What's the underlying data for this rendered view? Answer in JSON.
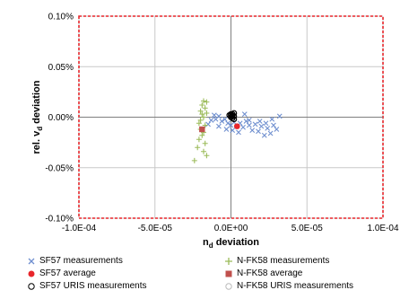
{
  "chart_data": {
    "type": "scatter",
    "xlim": [
      -0.0001,
      0.0001
    ],
    "ylim": [
      -0.1,
      0.1
    ],
    "x_ticks": [
      "-1.0E-04",
      "-5.0E-05",
      "0.0E+00",
      "5.0E-05",
      "1.0E-04"
    ],
    "x_tick_values": [
      -0.0001,
      -5e-05,
      0,
      5e-05,
      0.0001
    ],
    "y_ticks": [
      "0.10%",
      "0.05%",
      "0.00%",
      "-0.05%",
      "-0.10%"
    ],
    "y_tick_values": [
      0.1,
      0.05,
      0,
      -0.05,
      -0.1
    ],
    "xlabel_main": "n",
    "xlabel_sub": "d",
    "xlabel_rest": " deviation",
    "ylabel_main": "rel. v",
    "ylabel_sub": "d",
    "ylabel_rest": " deviation",
    "grid": true,
    "legend_position": "bottom",
    "series": [
      {
        "name": "SF57 measurements",
        "marker": "x",
        "color": "#6f8fcf",
        "points": [
          [
            -1.3e-05,
            -0.003
          ],
          [
            -1.1e-05,
            0.002
          ],
          [
            -1e-05,
            -0.002
          ],
          [
            -8e-06,
            0.001
          ],
          [
            -6e-06,
            -0.004
          ],
          [
            -4e-06,
            -0.002
          ],
          [
            -2e-06,
            -0.006
          ],
          [
            0.0,
            -0.008
          ],
          [
            2e-06,
            -0.005
          ],
          [
            4e-06,
            -0.009
          ],
          [
            6e-06,
            -0.006
          ],
          [
            8e-06,
            -0.01
          ],
          [
            1e-05,
            -0.004
          ],
          [
            1.2e-05,
            -0.008
          ],
          [
            1.4e-05,
            -0.013
          ],
          [
            1.6e-05,
            -0.007
          ],
          [
            1.8e-05,
            -0.014
          ],
          [
            2e-05,
            -0.009
          ],
          [
            2.2e-05,
            -0.018
          ],
          [
            2.4e-05,
            -0.011
          ],
          [
            2.6e-05,
            -0.016
          ],
          [
            2.8e-05,
            -0.008
          ],
          [
            3e-05,
            -0.012
          ],
          [
            3.2e-05,
            0.001
          ],
          [
            2.7e-05,
            -0.002
          ],
          [
            -3e-06,
            -0.012
          ],
          [
            1e-06,
            -0.013
          ],
          [
            5e-06,
            -0.015
          ],
          [
            -8e-06,
            -0.009
          ],
          [
            1.2e-05,
            -0.003
          ],
          [
            1.9e-05,
            -0.004
          ],
          [
            2.3e-05,
            -0.006
          ],
          [
            9e-06,
            0.003
          ],
          [
            -1.5e-05,
            -0.007
          ]
        ]
      },
      {
        "name": "N-FK58 measurements",
        "marker": "+",
        "color": "#9bbb59",
        "points": [
          [
            -2.4e-05,
            -0.043
          ],
          [
            -2.2e-05,
            -0.03
          ],
          [
            -2.1e-05,
            -0.022
          ],
          [
            -2e-05,
            -0.012
          ],
          [
            -2e-05,
            -0.003
          ],
          [
            -2e-05,
            0.006
          ],
          [
            -1.9e-05,
            0.012
          ],
          [
            -1.9e-05,
            -0.018
          ],
          [
            -1.8e-05,
            0.016
          ],
          [
            -1.8e-05,
            0.0
          ],
          [
            -1.7e-05,
            -0.008
          ],
          [
            -1.7e-05,
            0.009
          ],
          [
            -1.6e-05,
            0.015
          ],
          [
            -1.6e-05,
            -0.038
          ],
          [
            -1.7e-05,
            -0.026
          ],
          [
            -1.8e-05,
            -0.034
          ],
          [
            -1.9e-05,
            0.003
          ],
          [
            -1.6e-05,
            0.004
          ],
          [
            -2.1e-05,
            -0.006
          ],
          [
            -1.8e-05,
            -0.015
          ]
        ]
      },
      {
        "name": "SF57 average",
        "marker": "circle",
        "color": "#e8262b",
        "points": [
          [
            4e-06,
            -0.009
          ]
        ]
      },
      {
        "name": "N-FK58 average",
        "marker": "square",
        "color": "#c0504d",
        "points": [
          [
            -1.9e-05,
            -0.012
          ]
        ]
      },
      {
        "name": "SF57 URIS measurements",
        "marker": "open-circle",
        "color": "#000000",
        "points": [
          [
            0.0,
            0.002
          ],
          [
            1e-06,
            0.003
          ],
          [
            2e-06,
            0.001
          ],
          [
            0.0,
            0.0
          ],
          [
            1e-06,
            -0.001
          ],
          [
            2e-06,
            0.004
          ],
          [
            -1e-06,
            0.002
          ],
          [
            1e-06,
            0.001
          ],
          [
            0.0,
            0.003
          ],
          [
            2e-06,
            -0.002
          ]
        ]
      },
      {
        "name": "N-FK58 URIS measurements",
        "marker": "open-circle-light",
        "color": "#cccccc",
        "points": []
      }
    ]
  },
  "legend": [
    {
      "label": "SF57 measurements",
      "icon": "x-mark-icon",
      "color": "#6f8fcf"
    },
    {
      "label": "N-FK58 measurements",
      "icon": "plus-mark-icon",
      "color": "#9bbb59"
    },
    {
      "label": "SF57 average",
      "icon": "filled-circle-icon",
      "color": "#e8262b"
    },
    {
      "label": "N-FK58 average",
      "icon": "filled-square-icon",
      "color": "#c0504d"
    },
    {
      "label": "SF57 URIS measurements",
      "icon": "open-circle-icon",
      "color": "#000000"
    },
    {
      "label": "N-FK58 URIS measurements",
      "icon": "open-circle-icon",
      "color": "#bbbbbb"
    }
  ],
  "colors": {
    "plot_border": "#e8262b",
    "grid": "#c8c8c8",
    "axis": "#808080"
  }
}
